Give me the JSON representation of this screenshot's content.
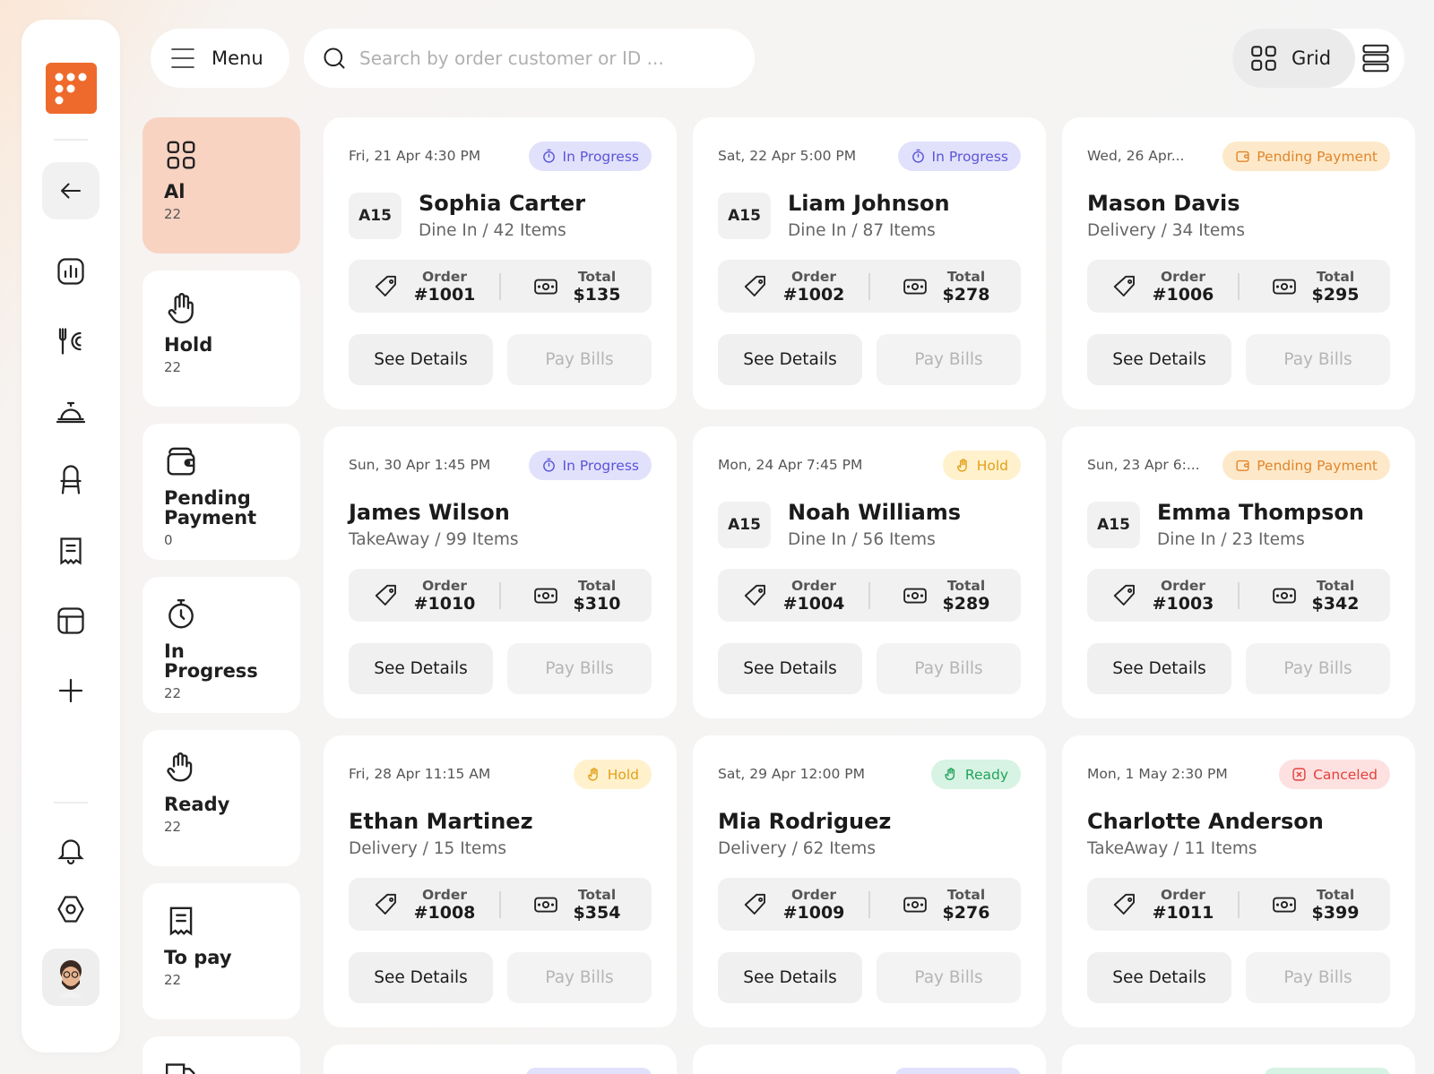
{
  "topbar": {
    "menu_label": "Menu",
    "search_placeholder": "Search by order customer or ID ...",
    "view_grid_label": "Grid"
  },
  "categories": [
    {
      "label": "Al",
      "count": "22",
      "icon": "grid-icon",
      "active": true
    },
    {
      "label": "Hold",
      "count": "22",
      "icon": "hand-icon"
    },
    {
      "label": "Pending Payment",
      "count": "0",
      "icon": "wallet-icon"
    },
    {
      "label": "In Progress",
      "count": "22",
      "icon": "stopwatch-icon"
    },
    {
      "label": "Ready",
      "count": "22",
      "icon": "serving-hand-icon"
    },
    {
      "label": "To pay",
      "count": "22",
      "icon": "receipt-icon"
    }
  ],
  "card_labels": {
    "order": "Order",
    "total": "Total",
    "see_details": "See Details",
    "pay_bills": "Pay Bills"
  },
  "orders": [
    {
      "date": "Fri, 21 Apr 4:30 PM",
      "status": "In Progress",
      "table": "A15",
      "name": "Sophia Carter",
      "meta": "Dine In / 42 Items",
      "order": "#1001",
      "total": "$135"
    },
    {
      "date": "Sat, 22 Apr 5:00 PM",
      "status": "In Progress",
      "table": "A15",
      "name": "Liam Johnson",
      "meta": "Dine In / 87 Items",
      "order": "#1002",
      "total": "$278"
    },
    {
      "date": "Wed, 26 Apr...",
      "status": "Pending Payment",
      "table": "",
      "name": "Mason Davis",
      "meta": "Delivery / 34 Items",
      "order": "#1006",
      "total": "$295"
    },
    {
      "date": "Sun, 30 Apr 1:45 PM",
      "status": "In Progress",
      "table": "",
      "name": "James Wilson",
      "meta": "TakeAway / 99 Items",
      "order": "#1010",
      "total": "$310"
    },
    {
      "date": "Mon, 24 Apr 7:45 PM",
      "status": "Hold",
      "table": "A15",
      "name": "Noah Williams",
      "meta": "Dine In / 56 Items",
      "order": "#1004",
      "total": "$289"
    },
    {
      "date": "Sun, 23 Apr 6:...",
      "status": "Pending Payment",
      "table": "A15",
      "name": "Emma Thompson",
      "meta": "Dine In / 23 Items",
      "order": "#1003",
      "total": "$342"
    },
    {
      "date": "Fri, 28 Apr 11:15 AM",
      "status": "Hold",
      "table": "",
      "name": "Ethan Martinez",
      "meta": "Delivery / 15 Items",
      "order": "#1008",
      "total": "$354"
    },
    {
      "date": "Sat, 29 Apr 12:00 PM",
      "status": "Ready",
      "table": "",
      "name": "Mia Rodriguez",
      "meta": "Delivery / 62 Items",
      "order": "#1009",
      "total": "$276"
    },
    {
      "date": "Mon, 1 May 2:30 PM",
      "status": "Canceled",
      "table": "",
      "name": "Charlotte Anderson",
      "meta": "TakeAway / 11 Items",
      "order": "#1011",
      "total": "$399"
    }
  ],
  "rail_icons": [
    "chart-icon",
    "utensils-icon",
    "cloche-icon",
    "chair-icon",
    "receipt-icon",
    "layout-icon",
    "plus-icon",
    "bell-icon",
    "settings-icon"
  ],
  "colors": {
    "brand": "#ee6a2c",
    "active_category": "#f8d3c2",
    "in_progress": "#5a55d8",
    "pending": "#e0862d",
    "hold": "#e3a019",
    "ready": "#23a25d",
    "canceled": "#e3403c"
  }
}
